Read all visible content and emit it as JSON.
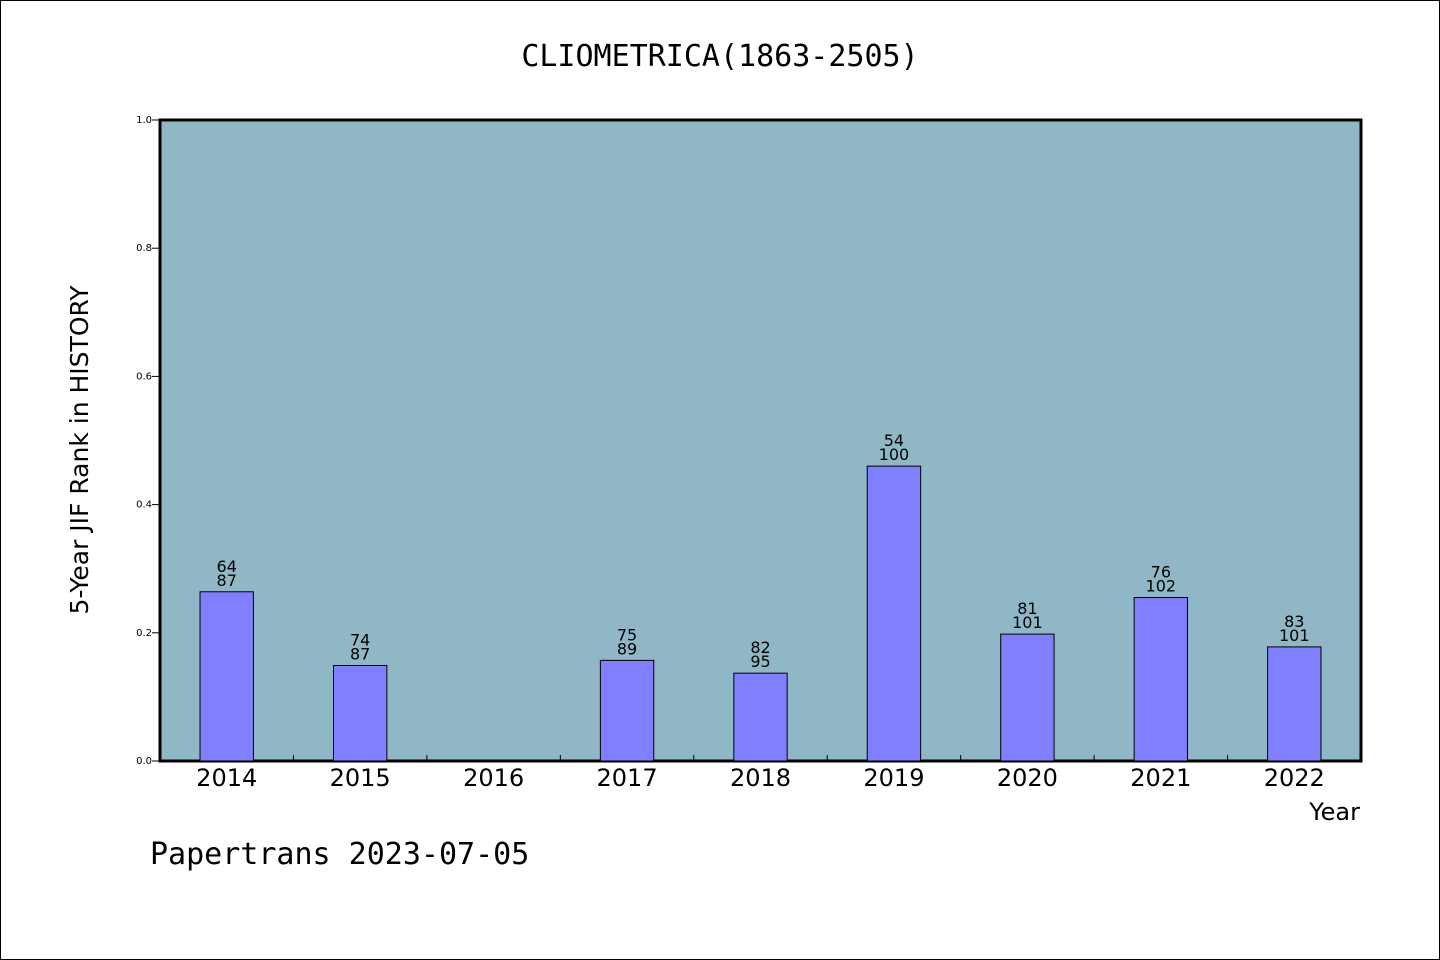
{
  "chart_data": {
    "type": "bar",
    "title": "CLIOMETRICA(1863-2505)",
    "xlabel": "Year",
    "ylabel": "5-Year JIF Rank in HISTORY",
    "ylim": [
      0,
      1.0
    ],
    "yticks": [
      "0.0",
      "0.2",
      "0.4",
      "0.6",
      "0.8",
      "1.0"
    ],
    "categories": [
      "2014",
      "2015",
      "2016",
      "2017",
      "2018",
      "2019",
      "2020",
      "2021",
      "2022"
    ],
    "values": [
      0.264,
      0.149,
      null,
      0.157,
      0.137,
      0.46,
      0.198,
      0.255,
      0.178
    ],
    "label_top": [
      "64",
      "74",
      "",
      "75",
      "82",
      "54",
      "81",
      "76",
      "83"
    ],
    "label_bottom": [
      "87",
      "87",
      "",
      "89",
      "95",
      "100",
      "101",
      "102",
      "101"
    ],
    "grid": false,
    "colors": {
      "plot_bg": "#8fb7c5",
      "bar": "#8080ff",
      "axis": "#000000"
    }
  },
  "footer": {
    "watermark": "Papertrans 2023-07-05"
  }
}
